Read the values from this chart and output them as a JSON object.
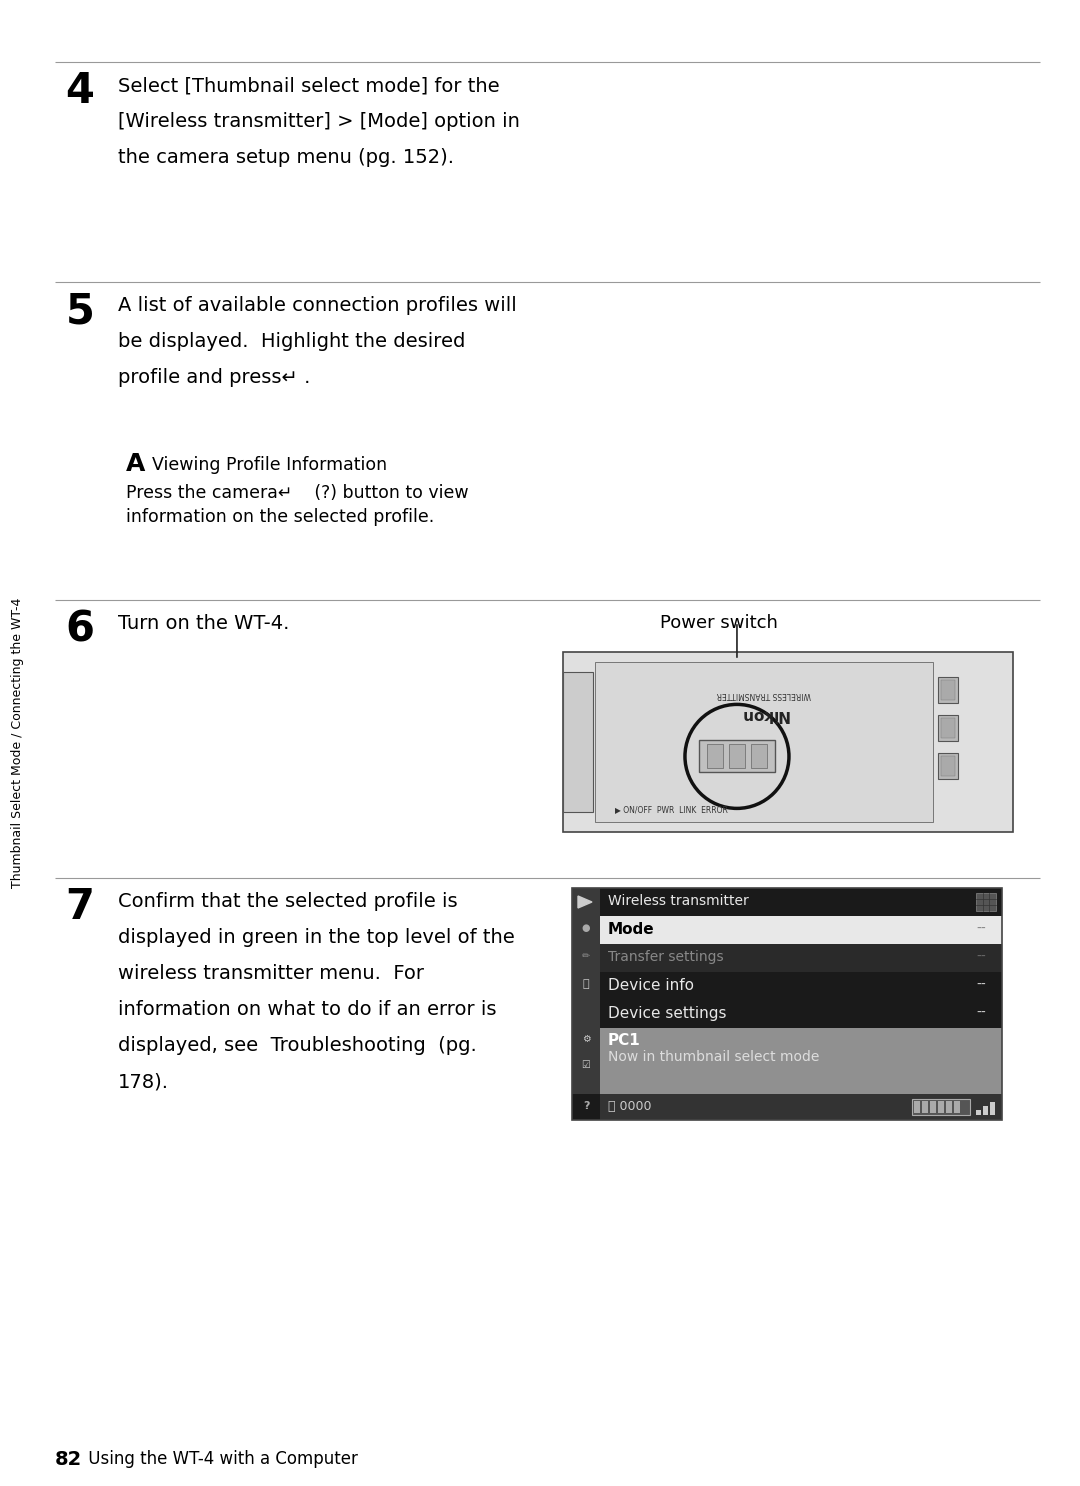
{
  "page_bg": "#ffffff",
  "sidebar_text": "Thumbnail Select Mode / Connecting the WT-4",
  "step4_num": "4",
  "step4_lines": [
    "Select [Thumbnail select mode] for the",
    "[Wireless transmitter] > [Mode] option in",
    "the camera setup menu (pg. 152)."
  ],
  "step5_num": "5",
  "step5_lines": [
    "A list of available connection profiles will",
    "be displayed.  Highlight the desired",
    "profile and press↵ ."
  ],
  "note_letter": "A",
  "note_title": "Viewing Profile Information",
  "note_line1": "Press the camera↵    (?) button to view",
  "note_line2": "information on the selected profile.",
  "step6_num": "6",
  "step6_text": "Turn on the WT-4.",
  "power_switch_label": "Power switch",
  "step7_num": "7",
  "step7_lines": [
    "Confirm that the selected profile is",
    "displayed in green in the top level of the",
    "wireless transmitter menu.  For",
    "information on what to do if an error is",
    "displayed, see  Troubleshooting  (pg.",
    "178)."
  ],
  "footer_num": "82",
  "footer_text": " Using the WT-4 with a Computer",
  "divider_color": "#999999",
  "text_color": "#000000",
  "menu_title_text": "Wireless transmitter",
  "menu_item1": "Mode",
  "menu_item2": "Transfer settings",
  "menu_item3": "Device info",
  "menu_item4": "Device settings",
  "menu_item5": "PC1",
  "menu_item6": "Now in thumbnail select mode",
  "menu_footer": "⎙ 0000"
}
